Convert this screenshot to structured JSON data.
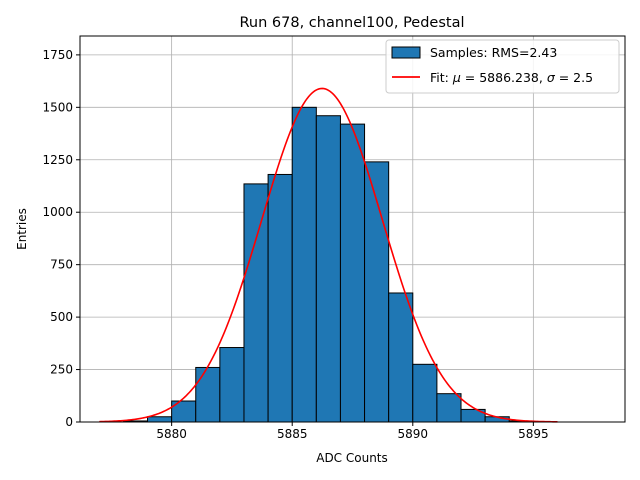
{
  "chart_data": {
    "type": "bar",
    "title": "Run 678, channel100, Pedestal",
    "xlabel": "ADC Counts",
    "ylabel": "Entries",
    "xlim": [
      5876.2,
      5898.8
    ],
    "ylim": [
      0,
      1840
    ],
    "xticks": [
      5880,
      5885,
      5890,
      5895
    ],
    "yticks": [
      0,
      250,
      500,
      750,
      1000,
      1250,
      1500,
      1750
    ],
    "grid": true,
    "legend_position": "top-right",
    "series": [
      {
        "name": "Samples: RMS=2.43",
        "kind": "histogram",
        "color": "#1f77b4",
        "edgecolor": "#000000",
        "bins": [
          {
            "x0": 5878,
            "x1": 5879,
            "count": 5
          },
          {
            "x0": 5879,
            "x1": 5880,
            "count": 25
          },
          {
            "x0": 5880,
            "x1": 5881,
            "count": 100
          },
          {
            "x0": 5881,
            "x1": 5882,
            "count": 260
          },
          {
            "x0": 5882,
            "x1": 5883,
            "count": 355
          },
          {
            "x0": 5883,
            "x1": 5884,
            "count": 1135
          },
          {
            "x0": 5884,
            "x1": 5885,
            "count": 1180
          },
          {
            "x0": 5885,
            "x1": 5886,
            "count": 1500
          },
          {
            "x0": 5886,
            "x1": 5887,
            "count": 1460
          },
          {
            "x0": 5887,
            "x1": 5888,
            "count": 1420
          },
          {
            "x0": 5888,
            "x1": 5889,
            "count": 1240
          },
          {
            "x0": 5889,
            "x1": 5890,
            "count": 615
          },
          {
            "x0": 5890,
            "x1": 5891,
            "count": 275
          },
          {
            "x0": 5891,
            "x1": 5892,
            "count": 135
          },
          {
            "x0": 5892,
            "x1": 5893,
            "count": 60
          },
          {
            "x0": 5893,
            "x1": 5894,
            "count": 25
          },
          {
            "x0": 5894,
            "x1": 5895,
            "count": 5
          }
        ]
      },
      {
        "name": "Fit: μ = 5886.238, σ = 2.5",
        "kind": "gaussian-line",
        "color": "#ff0000",
        "mu": 5886.238,
        "sigma": 2.5,
        "amplitude": 1590,
        "x_range": [
          5877,
          5896
        ]
      }
    ],
    "legend": {
      "samples_label_prefix": "Samples: RMS=2.43",
      "fit_label_prefix": "Fit: ",
      "fit_mu_symbol": "μ",
      "fit_mu_text": " = 5886.238, ",
      "fit_sigma_symbol": "σ",
      "fit_sigma_text": " = 2.5"
    }
  }
}
